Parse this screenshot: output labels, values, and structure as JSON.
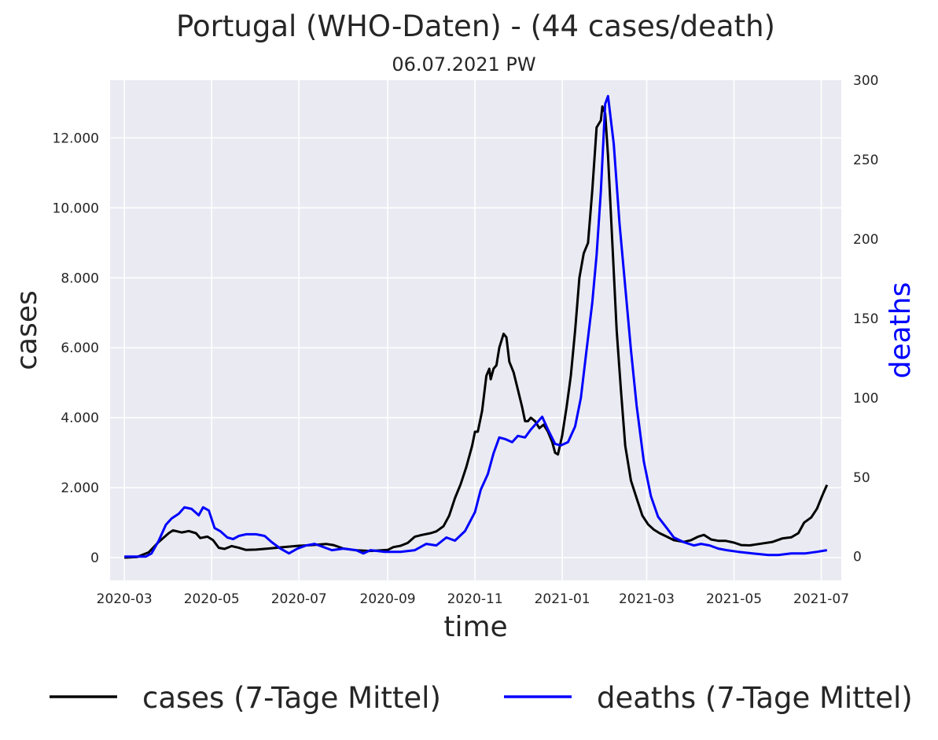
{
  "chart_data": {
    "type": "line",
    "title": "Portugal (WHO-Daten) - (44 cases/death)",
    "subtitle": "06.07.2021 PW",
    "xlabel": "time",
    "ylabel": "cases",
    "y2label": "deaths",
    "x_ticks": [
      "2020-03",
      "2020-05",
      "2020-07",
      "2020-09",
      "2020-11",
      "2021-01",
      "2021-03",
      "2021-05",
      "2021-07"
    ],
    "y_ticks": [
      0,
      2000,
      4000,
      6000,
      8000,
      10000,
      12000
    ],
    "y_tick_labels": [
      "0",
      "2.000",
      "4.000",
      "6.000",
      "8.000",
      "10.000",
      "12.000"
    ],
    "y2_ticks": [
      0,
      50,
      100,
      150,
      200,
      250,
      300
    ],
    "y2_tick_labels": [
      "0",
      "50",
      "100",
      "150",
      "200",
      "250",
      "300"
    ],
    "xlim": [
      "2020-02-20",
      "2021-07-15"
    ],
    "ylim": [
      -650,
      13650
    ],
    "y2lim": [
      -15,
      300
    ],
    "grid": true,
    "legend": "bottom",
    "colors": {
      "plot_background": "#eaeaf2",
      "cases": "#000000",
      "deaths": "#0000ff",
      "deaths_axis_label": "#0000ff"
    },
    "series": [
      {
        "name": "cases (7-Tage Mittel)",
        "axis": "left",
        "color": "#000000",
        "points": [
          [
            "2020-03-01",
            0
          ],
          [
            "2020-03-10",
            20
          ],
          [
            "2020-03-18",
            150
          ],
          [
            "2020-03-25",
            450
          ],
          [
            "2020-04-01",
            700
          ],
          [
            "2020-04-04",
            780
          ],
          [
            "2020-04-10",
            720
          ],
          [
            "2020-04-15",
            760
          ],
          [
            "2020-04-20",
            700
          ],
          [
            "2020-04-23",
            560
          ],
          [
            "2020-04-28",
            600
          ],
          [
            "2020-05-02",
            500
          ],
          [
            "2020-05-06",
            280
          ],
          [
            "2020-05-10",
            250
          ],
          [
            "2020-05-15",
            330
          ],
          [
            "2020-05-20",
            280
          ],
          [
            "2020-05-25",
            220
          ],
          [
            "2020-06-01",
            230
          ],
          [
            "2020-06-10",
            260
          ],
          [
            "2020-06-20",
            300
          ],
          [
            "2020-07-01",
            340
          ],
          [
            "2020-07-10",
            360
          ],
          [
            "2020-07-20",
            390
          ],
          [
            "2020-07-25",
            360
          ],
          [
            "2020-08-01",
            260
          ],
          [
            "2020-08-10",
            210
          ],
          [
            "2020-08-20",
            190
          ],
          [
            "2020-09-01",
            220
          ],
          [
            "2020-09-05",
            300
          ],
          [
            "2020-09-10",
            340
          ],
          [
            "2020-09-15",
            420
          ],
          [
            "2020-09-20",
            600
          ],
          [
            "2020-09-25",
            650
          ],
          [
            "2020-10-01",
            700
          ],
          [
            "2020-10-05",
            750
          ],
          [
            "2020-10-10",
            900
          ],
          [
            "2020-10-14",
            1200
          ],
          [
            "2020-10-18",
            1700
          ],
          [
            "2020-10-22",
            2100
          ],
          [
            "2020-10-26",
            2600
          ],
          [
            "2020-10-30",
            3200
          ],
          [
            "2020-11-01",
            3600
          ],
          [
            "2020-11-03",
            3600
          ],
          [
            "2020-11-06",
            4200
          ],
          [
            "2020-11-09",
            5200
          ],
          [
            "2020-11-11",
            5400
          ],
          [
            "2020-11-12",
            5100
          ],
          [
            "2020-11-14",
            5400
          ],
          [
            "2020-11-16",
            5500
          ],
          [
            "2020-11-18",
            6000
          ],
          [
            "2020-11-21",
            6400
          ],
          [
            "2020-11-23",
            6300
          ],
          [
            "2020-11-25",
            5600
          ],
          [
            "2020-11-28",
            5300
          ],
          [
            "2020-12-01",
            4800
          ],
          [
            "2020-12-04",
            4300
          ],
          [
            "2020-12-06",
            3900
          ],
          [
            "2020-12-08",
            3900
          ],
          [
            "2020-12-10",
            4000
          ],
          [
            "2020-12-13",
            3900
          ],
          [
            "2020-12-16",
            3700
          ],
          [
            "2020-12-19",
            3800
          ],
          [
            "2020-12-22",
            3600
          ],
          [
            "2020-12-25",
            3300
          ],
          [
            "2020-12-27",
            3000
          ],
          [
            "2020-12-29",
            2950
          ],
          [
            "2021-01-01",
            3500
          ],
          [
            "2021-01-04",
            4300
          ],
          [
            "2021-01-07",
            5200
          ],
          [
            "2021-01-10",
            6500
          ],
          [
            "2021-01-13",
            8000
          ],
          [
            "2021-01-16",
            8700
          ],
          [
            "2021-01-19",
            9000
          ],
          [
            "2021-01-22",
            10500
          ],
          [
            "2021-01-25",
            12300
          ],
          [
            "2021-01-28",
            12500
          ],
          [
            "2021-01-29",
            12900
          ],
          [
            "2021-01-31",
            12700
          ],
          [
            "2021-02-02",
            11500
          ],
          [
            "2021-02-05",
            9000
          ],
          [
            "2021-02-08",
            6500
          ],
          [
            "2021-02-11",
            4800
          ],
          [
            "2021-02-14",
            3200
          ],
          [
            "2021-02-18",
            2200
          ],
          [
            "2021-02-22",
            1700
          ],
          [
            "2021-02-26",
            1200
          ],
          [
            "2021-03-02",
            950
          ],
          [
            "2021-03-06",
            800
          ],
          [
            "2021-03-10",
            700
          ],
          [
            "2021-03-15",
            600
          ],
          [
            "2021-03-20",
            500
          ],
          [
            "2021-03-27",
            450
          ],
          [
            "2021-04-01",
            500
          ],
          [
            "2021-04-06",
            600
          ],
          [
            "2021-04-10",
            650
          ],
          [
            "2021-04-15",
            520
          ],
          [
            "2021-04-20",
            480
          ],
          [
            "2021-04-25",
            480
          ],
          [
            "2021-05-01",
            430
          ],
          [
            "2021-05-06",
            360
          ],
          [
            "2021-05-12",
            350
          ],
          [
            "2021-05-20",
            400
          ],
          [
            "2021-05-28",
            450
          ],
          [
            "2021-06-04",
            550
          ],
          [
            "2021-06-10",
            580
          ],
          [
            "2021-06-15",
            700
          ],
          [
            "2021-06-19",
            1000
          ],
          [
            "2021-06-24",
            1150
          ],
          [
            "2021-06-28",
            1400
          ],
          [
            "2021-07-02",
            1800
          ],
          [
            "2021-07-05",
            2080
          ]
        ]
      },
      {
        "name": "deaths (7-Tage Mittel)",
        "axis": "right",
        "color": "#0000ff",
        "points": [
          [
            "2020-03-01",
            0
          ],
          [
            "2020-03-16",
            0
          ],
          [
            "2020-03-20",
            2
          ],
          [
            "2020-03-25",
            10
          ],
          [
            "2020-03-30",
            20
          ],
          [
            "2020-04-03",
            24
          ],
          [
            "2020-04-08",
            27
          ],
          [
            "2020-04-12",
            31
          ],
          [
            "2020-04-17",
            30
          ],
          [
            "2020-04-22",
            26
          ],
          [
            "2020-04-25",
            31
          ],
          [
            "2020-04-29",
            29
          ],
          [
            "2020-05-03",
            18
          ],
          [
            "2020-05-07",
            16
          ],
          [
            "2020-05-12",
            12
          ],
          [
            "2020-05-16",
            11
          ],
          [
            "2020-05-20",
            13
          ],
          [
            "2020-05-25",
            14
          ],
          [
            "2020-06-01",
            14
          ],
          [
            "2020-06-07",
            13
          ],
          [
            "2020-06-12",
            9
          ],
          [
            "2020-06-18",
            5
          ],
          [
            "2020-06-24",
            2
          ],
          [
            "2020-06-30",
            5
          ],
          [
            "2020-07-06",
            7
          ],
          [
            "2020-07-12",
            8
          ],
          [
            "2020-07-18",
            6
          ],
          [
            "2020-07-24",
            4
          ],
          [
            "2020-08-01",
            5
          ],
          [
            "2020-08-10",
            4
          ],
          [
            "2020-08-15",
            2
          ],
          [
            "2020-08-20",
            4
          ],
          [
            "2020-08-30",
            3
          ],
          [
            "2020-09-10",
            3
          ],
          [
            "2020-09-20",
            4
          ],
          [
            "2020-09-28",
            8
          ],
          [
            "2020-10-05",
            7
          ],
          [
            "2020-10-12",
            12
          ],
          [
            "2020-10-18",
            10
          ],
          [
            "2020-10-25",
            16
          ],
          [
            "2020-11-01",
            28
          ],
          [
            "2020-11-05",
            42
          ],
          [
            "2020-11-10",
            52
          ],
          [
            "2020-11-14",
            65
          ],
          [
            "2020-11-18",
            75
          ],
          [
            "2020-11-22",
            74
          ],
          [
            "2020-11-27",
            72
          ],
          [
            "2020-12-01",
            76
          ],
          [
            "2020-12-06",
            75
          ],
          [
            "2020-12-10",
            80
          ],
          [
            "2020-12-15",
            85
          ],
          [
            "2020-12-18",
            88
          ],
          [
            "2020-12-22",
            80
          ],
          [
            "2020-12-27",
            71
          ],
          [
            "2020-12-31",
            70
          ],
          [
            "2021-01-05",
            72
          ],
          [
            "2021-01-10",
            82
          ],
          [
            "2021-01-14",
            100
          ],
          [
            "2021-01-18",
            130
          ],
          [
            "2021-01-22",
            160
          ],
          [
            "2021-01-25",
            190
          ],
          [
            "2021-01-28",
            230
          ],
          [
            "2021-01-31",
            285
          ],
          [
            "2021-02-02",
            290
          ],
          [
            "2021-02-06",
            260
          ],
          [
            "2021-02-10",
            210
          ],
          [
            "2021-02-14",
            170
          ],
          [
            "2021-02-18",
            130
          ],
          [
            "2021-02-22",
            95
          ],
          [
            "2021-02-27",
            60
          ],
          [
            "2021-03-04",
            38
          ],
          [
            "2021-03-09",
            25
          ],
          [
            "2021-03-15",
            18
          ],
          [
            "2021-03-20",
            12
          ],
          [
            "2021-03-27",
            9
          ],
          [
            "2021-04-03",
            7
          ],
          [
            "2021-04-08",
            8
          ],
          [
            "2021-04-14",
            7
          ],
          [
            "2021-04-20",
            5
          ],
          [
            "2021-04-26",
            4
          ],
          [
            "2021-05-04",
            3
          ],
          [
            "2021-05-14",
            2
          ],
          [
            "2021-05-25",
            1
          ],
          [
            "2021-06-01",
            1
          ],
          [
            "2021-06-10",
            2
          ],
          [
            "2021-06-20",
            2
          ],
          [
            "2021-06-28",
            3
          ],
          [
            "2021-07-05",
            4
          ]
        ]
      }
    ]
  }
}
